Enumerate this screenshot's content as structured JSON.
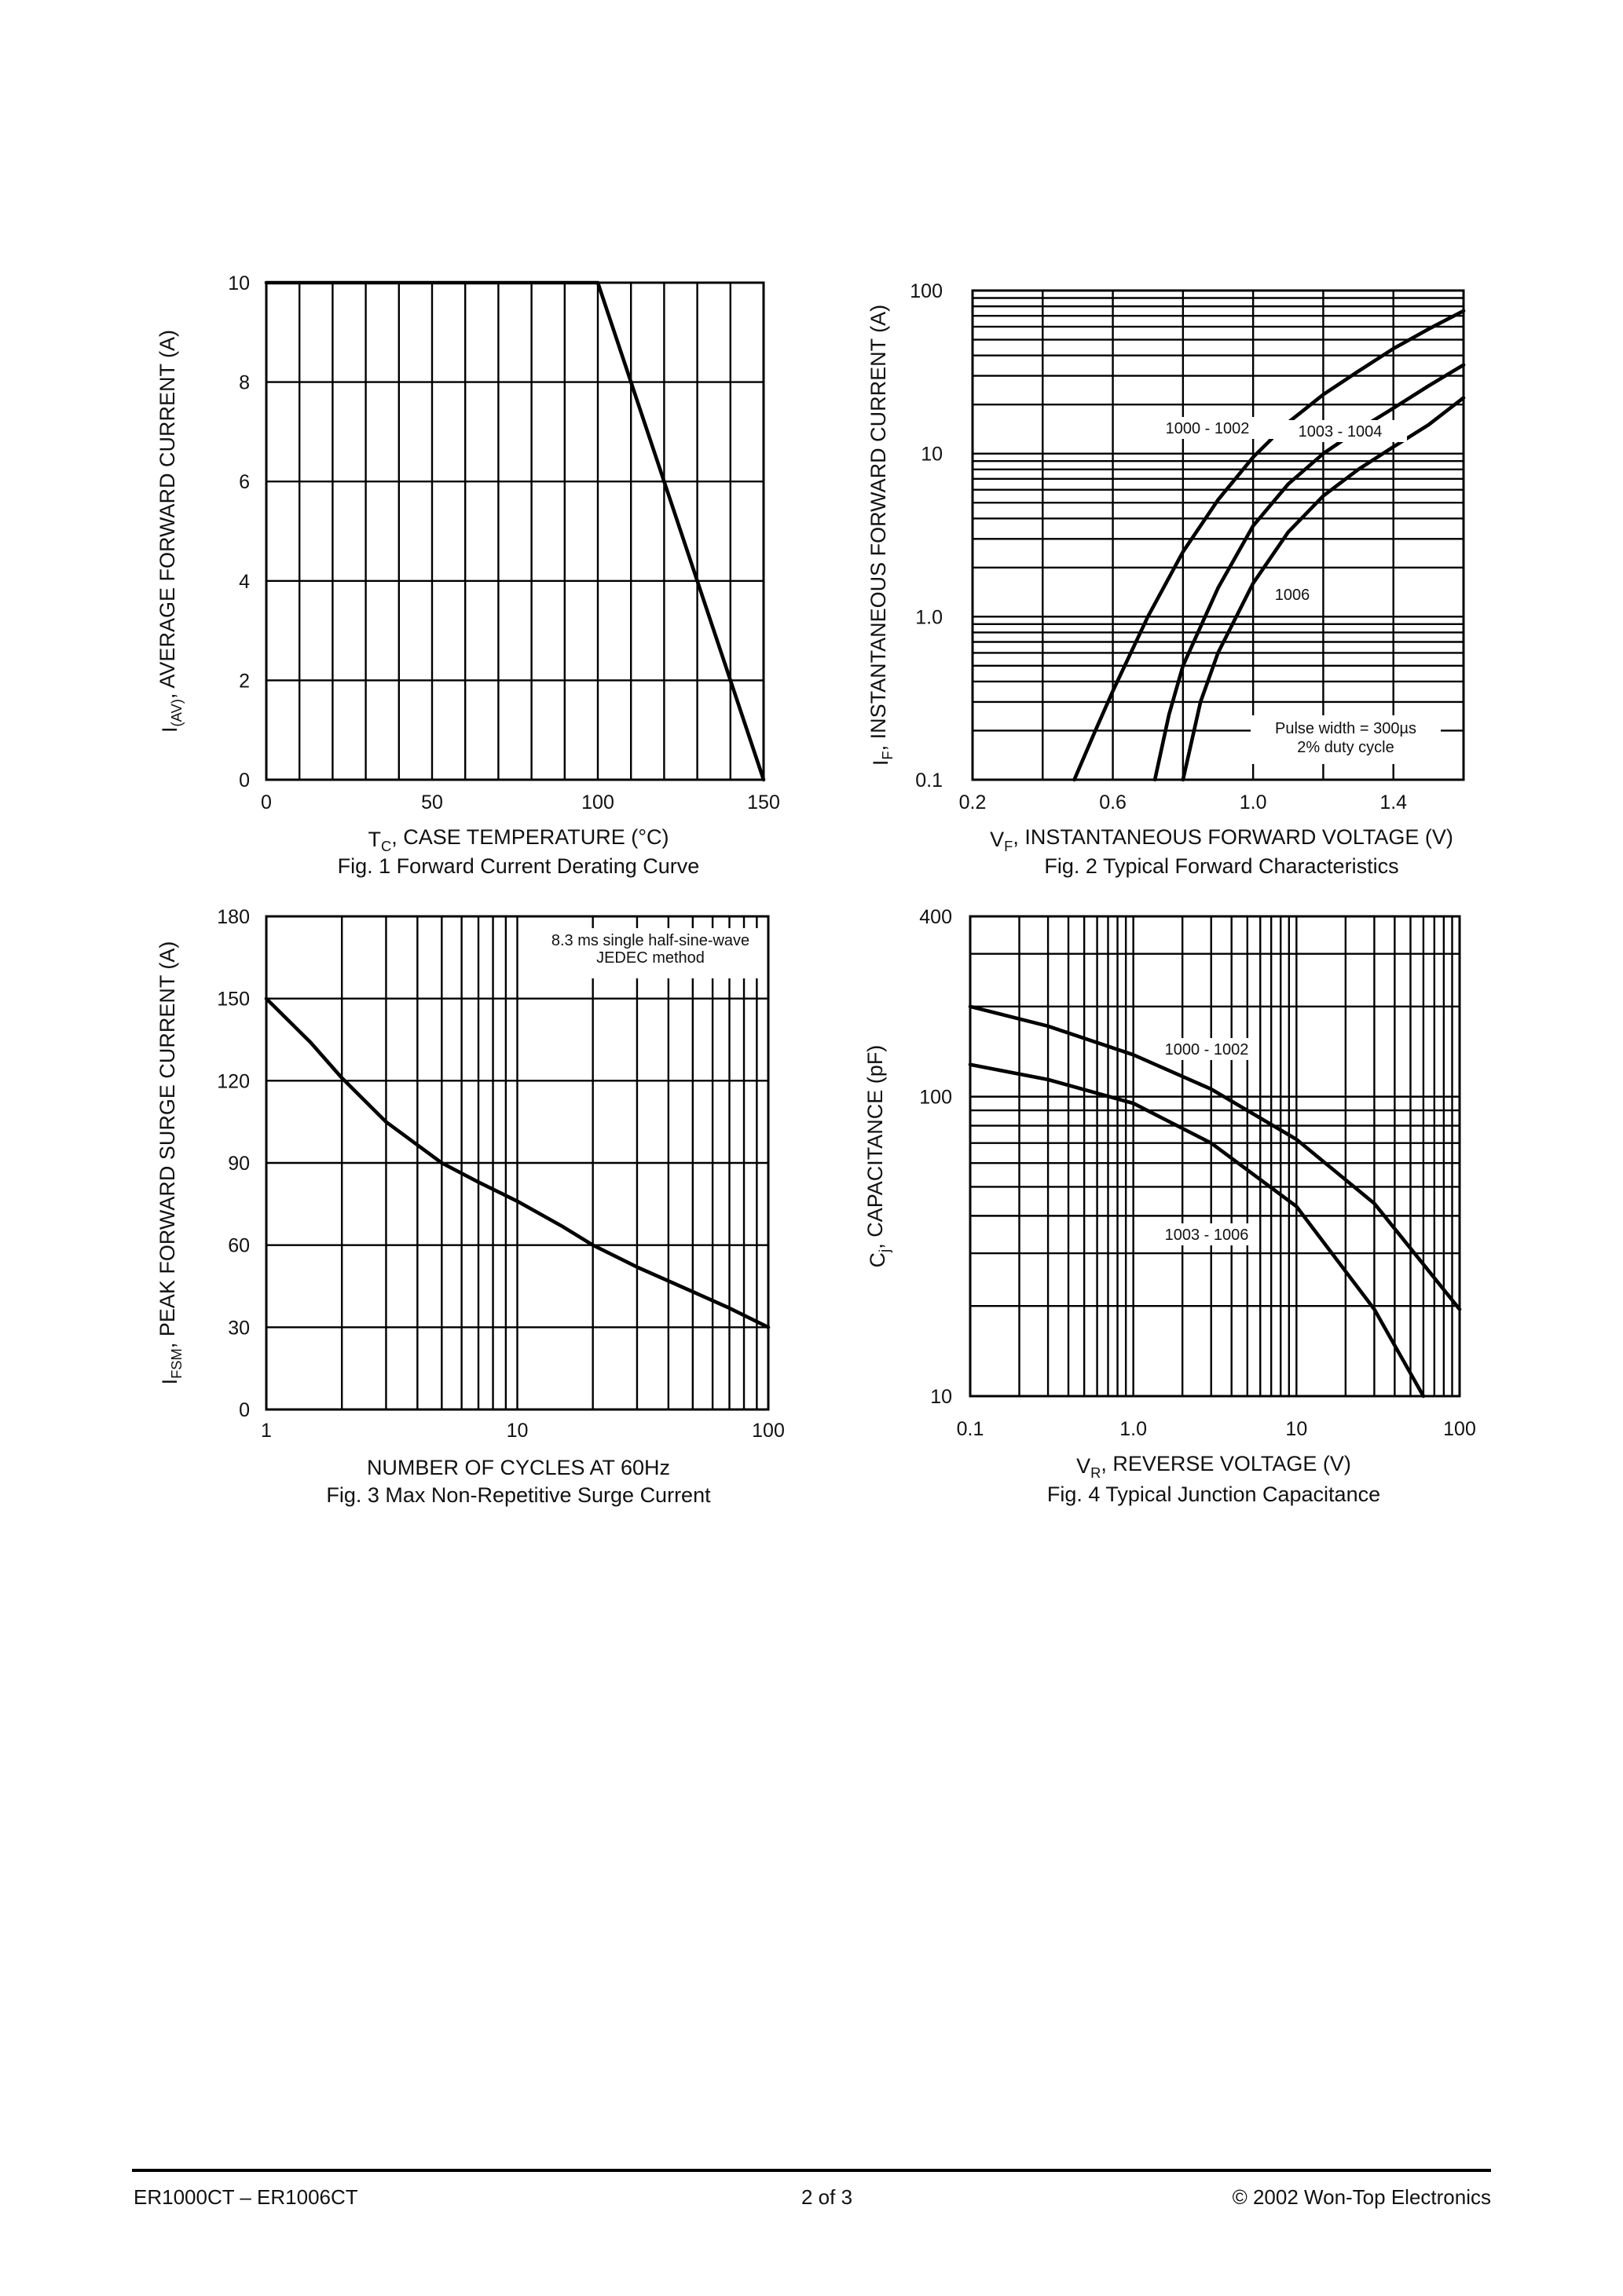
{
  "chart_data": [
    {
      "type": "line",
      "caption": "Fig. 1  Forward Current Derating Curve",
      "ylabel": "I(AV), AVERAGE FORWARD CURRENT (A)",
      "ylabel_parts": [
        [
          "I",
          "n"
        ],
        [
          "(AV)",
          "sub"
        ],
        [
          ", AVERAGE FORWARD CURRENT (A)",
          "n"
        ]
      ],
      "xlabel": "TC, CASE TEMPERATURE (°C)",
      "xlabel_parts": [
        [
          "T",
          "n"
        ],
        [
          "C",
          "sub"
        ],
        [
          ", CASE TEMPERATURE (°C)",
          "n"
        ]
      ],
      "xscale": "linear",
      "yscale": "linear",
      "xlim": [
        0,
        150
      ],
      "ylim": [
        0,
        10
      ],
      "xticks": [
        0,
        50,
        100,
        150
      ],
      "xtick_labels": [
        "0",
        "50",
        "100",
        "150"
      ],
      "yticks": [
        0,
        2,
        4,
        6,
        8,
        10
      ],
      "ytick_labels": [
        "0",
        "2",
        "4",
        "6",
        "8",
        "10"
      ],
      "grid_x": [
        10,
        20,
        30,
        40,
        50,
        60,
        70,
        80,
        90,
        100,
        110,
        120,
        130,
        140
      ],
      "grid_y": [
        2,
        4,
        6,
        8
      ],
      "series": [
        {
          "x": [
            0,
            100,
            150
          ],
          "y": [
            10,
            10,
            0
          ]
        }
      ],
      "annotations": []
    },
    {
      "type": "line",
      "caption": "Fig. 2  Typical Forward Characteristics",
      "ylabel": "IF, INSTANTANEOUS FORWARD CURRENT (A)",
      "ylabel_parts": [
        [
          "I",
          "n"
        ],
        [
          "F",
          "sub"
        ],
        [
          ", INSTANTANEOUS FORWARD CURRENT (A)",
          "n"
        ]
      ],
      "xlabel": "VF, INSTANTANEOUS FORWARD VOLTAGE (V)",
      "xlabel_parts": [
        [
          "V",
          "n"
        ],
        [
          "F",
          "sub"
        ],
        [
          ", INSTANTANEOUS FORWARD VOLTAGE (V)",
          "n"
        ]
      ],
      "xscale": "linear",
      "yscale": "log",
      "xlim": [
        0.2,
        1.6
      ],
      "ylim": [
        0.1,
        100
      ],
      "xticks": [
        0.2,
        0.6,
        1.0,
        1.4
      ],
      "xtick_labels": [
        "0.2",
        "0.6",
        "1.0",
        "1.4"
      ],
      "yticks": [
        0.1,
        1,
        10,
        100
      ],
      "ytick_labels": [
        "0.1",
        "1.0",
        "10",
        "100"
      ],
      "grid_x": [
        0.4,
        0.6,
        0.8,
        1.0,
        1.2,
        1.4
      ],
      "grid_y": [
        0.2,
        0.3,
        0.4,
        0.5,
        0.6,
        0.7,
        0.8,
        0.9,
        1,
        2,
        3,
        4,
        5,
        6,
        7,
        8,
        9,
        10,
        20,
        30,
        40,
        50,
        60,
        70,
        80,
        90
      ],
      "series": [
        {
          "name": "1000 - 1002",
          "x": [
            0.49,
            0.55,
            0.6,
            0.7,
            0.8,
            0.9,
            1.0,
            1.1,
            1.2,
            1.3,
            1.4,
            1.5,
            1.6
          ],
          "y": [
            0.1,
            0.2,
            0.35,
            1.0,
            2.5,
            5.2,
            9.5,
            15.5,
            23,
            32,
            44,
            58,
            75
          ]
        },
        {
          "name": "1003 - 1004",
          "x": [
            0.72,
            0.76,
            0.8,
            0.9,
            1.0,
            1.1,
            1.2,
            1.3,
            1.4,
            1.5,
            1.6
          ],
          "y": [
            0.1,
            0.25,
            0.5,
            1.5,
            3.6,
            6.5,
            10,
            14,
            19,
            26,
            35
          ]
        },
        {
          "name": "1006",
          "x": [
            0.8,
            0.85,
            0.9,
            1.0,
            1.1,
            1.2,
            1.3,
            1.4,
            1.5,
            1.6
          ],
          "y": [
            0.1,
            0.3,
            0.6,
            1.6,
            3.3,
            5.5,
            8.0,
            11,
            15,
            22
          ]
        }
      ],
      "annotations": [
        "Pulse width = 300µs",
        "2% duty cycle"
      ]
    },
    {
      "type": "line",
      "caption": "Fig. 3  Max Non-Repetitive Surge Current",
      "ylabel": "IFSM, PEAK FORWARD SURGE CURRENT (A)",
      "ylabel_parts": [
        [
          "I",
          "n"
        ],
        [
          "FSM",
          "sub"
        ],
        [
          ", PEAK FORWARD SURGE CURRENT (A)",
          "n"
        ]
      ],
      "xlabel": "NUMBER OF CYCLES AT 60Hz",
      "xlabel_parts": [
        [
          "NUMBER OF CYCLES AT 60Hz",
          "n"
        ]
      ],
      "xscale": "log",
      "yscale": "linear",
      "xlim": [
        1,
        100
      ],
      "ylim": [
        0,
        180
      ],
      "xticks": [
        1,
        10,
        100
      ],
      "xtick_labels": [
        "1",
        "10",
        "100"
      ],
      "yticks": [
        0,
        30,
        60,
        90,
        120,
        150,
        180
      ],
      "ytick_labels": [
        "0",
        "30",
        "60",
        "90",
        "120",
        "150",
        "180"
      ],
      "grid_x": [
        2,
        3,
        4,
        5,
        6,
        7,
        8,
        9,
        10,
        20,
        30,
        40,
        50,
        60,
        70,
        80,
        90
      ],
      "grid_y": [
        30,
        60,
        90,
        120,
        150
      ],
      "series": [
        {
          "x": [
            1,
            1.5,
            2,
            3,
            5,
            7,
            10,
            15,
            20,
            30,
            50,
            70,
            100
          ],
          "y": [
            150,
            134,
            121,
            105,
            90,
            83,
            76,
            67,
            60,
            52,
            43,
            37,
            30
          ]
        }
      ],
      "annotations": [
        "8.3 ms single half-sine-wave",
        "JEDEC method"
      ]
    },
    {
      "type": "line",
      "caption": "Fig. 4  Typical Junction Capacitance",
      "ylabel": "Cj, CAPACITANCE (pF)",
      "ylabel_parts": [
        [
          "C",
          "n"
        ],
        [
          "j",
          "sub"
        ],
        [
          ", CAPACITANCE (pF)",
          "n"
        ]
      ],
      "xlabel": "VR, REVERSE VOLTAGE (V)",
      "xlabel_parts": [
        [
          "V",
          "n"
        ],
        [
          "R",
          "sub"
        ],
        [
          ", REVERSE VOLTAGE (V)",
          "n"
        ]
      ],
      "xscale": "log",
      "yscale": "log",
      "xlim": [
        0.1,
        100
      ],
      "ylim": [
        10,
        400
      ],
      "xticks": [
        0.1,
        1,
        10,
        100
      ],
      "xtick_labels": [
        "0.1",
        "1.0",
        "10",
        "100"
      ],
      "yticks": [
        10,
        100,
        400
      ],
      "ytick_labels": [
        "10",
        "100",
        "400"
      ],
      "grid_x": [
        0.2,
        0.3,
        0.4,
        0.5,
        0.6,
        0.7,
        0.8,
        0.9,
        1,
        2,
        3,
        4,
        5,
        6,
        7,
        8,
        9,
        10,
        20,
        30,
        40,
        50,
        60,
        70,
        80,
        90
      ],
      "grid_y": [
        20,
        30,
        40,
        50,
        60,
        70,
        80,
        90,
        100,
        200,
        300
      ],
      "series": [
        {
          "name": "1000 - 1002",
          "x": [
            0.1,
            0.3,
            1,
            3,
            10,
            30,
            100
          ],
          "y": [
            200,
            172,
            138,
            106,
            72,
            44,
            19.5
          ]
        },
        {
          "name": "1003 - 1006",
          "x": [
            0.1,
            0.3,
            1,
            3,
            10,
            30,
            60
          ],
          "y": [
            128,
            114,
            95,
            70,
            43,
            19.5,
            10
          ]
        }
      ],
      "annotations": []
    }
  ],
  "footer": {
    "left": "ER1000CT – ER1006CT",
    "center": "2 of 3",
    "right": "© 2002 Won-Top Electronics"
  }
}
